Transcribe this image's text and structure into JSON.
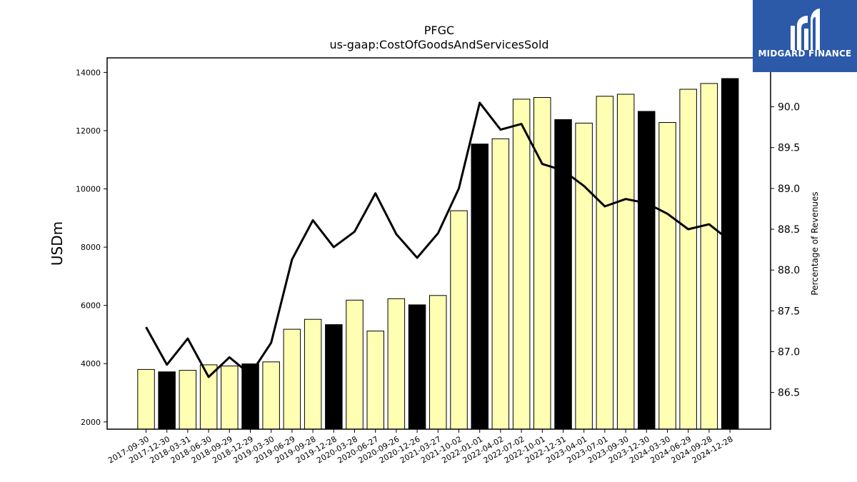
{
  "brand": {
    "name": "MIDGARD FINANCE",
    "background": "#2c5aa9"
  },
  "chart_data": {
    "type": "bar",
    "title": "PFGC",
    "subtitle": "us-gaap:CostOfGoodsAndServicesSold",
    "ylabel": "USDm",
    "y2label": "Percentage of Revenues",
    "ylim": [
      1750,
      14500
    ],
    "y2lim": [
      86.05,
      90.6
    ],
    "yticks": [
      2000,
      4000,
      6000,
      8000,
      10000,
      12000,
      14000
    ],
    "y2ticks": [
      "86.5",
      "87.0",
      "87.5",
      "88.0",
      "88.5",
      "89.0",
      "89.5",
      "90.0"
    ],
    "categories": [
      "2017-09-30",
      "2017-12-30",
      "2018-03-31",
      "2018-06-30",
      "2018-09-29",
      "2018-12-29",
      "2019-03-30",
      "2019-06-29",
      "2019-09-28",
      "2019-12-28",
      "2020-03-28",
      "2020-06-27",
      "2020-09-26",
      "2020-12-26",
      "2021-03-27",
      "2021-10-02",
      "2022-01-01",
      "2022-04-02",
      "2022-07-02",
      "2022-10-01",
      "2022-12-31",
      "2023-04-01",
      "2023-07-01",
      "2023-09-30",
      "2023-12-30",
      "2024-03-30",
      "2024-06-29",
      "2024-09-28",
      "2024-12-28"
    ],
    "series": [
      {
        "type": "bar",
        "values": [
          3800,
          3720,
          3770,
          3960,
          3920,
          3990,
          4060,
          5180,
          5520,
          5340,
          6180,
          5120,
          6230,
          6020,
          6340,
          9250,
          11540,
          11720,
          13080,
          13140,
          12380,
          12260,
          13180,
          13250,
          12660,
          12280,
          13420,
          13620,
          13790
        ],
        "colors": [
          "#ffffb3",
          "#000000",
          "#ffffb3",
          "#ffffb3",
          "#ffffb3",
          "#000000",
          "#ffffb3",
          "#ffffb3",
          "#ffffb3",
          "#000000",
          "#ffffb3",
          "#ffffb3",
          "#ffffb3",
          "#000000",
          "#ffffb3",
          "#ffffb3",
          "#000000",
          "#ffffb3",
          "#ffffb3",
          "#ffffb3",
          "#000000",
          "#ffffb3",
          "#ffffb3",
          "#ffffb3",
          "#000000",
          "#ffffb3",
          "#ffffb3",
          "#ffffb3",
          "#000000"
        ]
      },
      {
        "type": "line",
        "axis": "right",
        "values": [
          87.3,
          86.84,
          87.16,
          86.69,
          86.93,
          86.72,
          87.11,
          88.13,
          88.61,
          88.28,
          88.47,
          88.94,
          88.44,
          88.15,
          88.45,
          89.0,
          90.05,
          89.72,
          89.79,
          89.3,
          89.22,
          89.03,
          88.78,
          88.87,
          88.82,
          88.69,
          88.5,
          88.56,
          88.36
        ]
      }
    ],
    "legend": "none",
    "grid": false
  }
}
